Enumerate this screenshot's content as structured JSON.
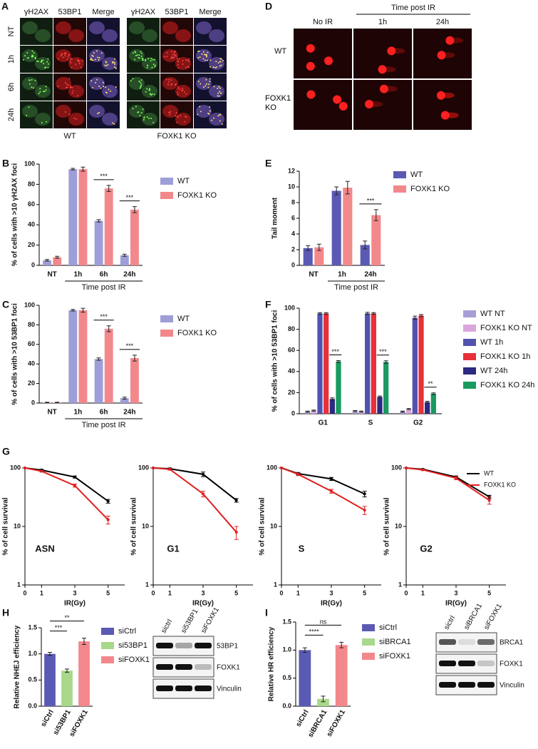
{
  "panel_a": {
    "label": "A",
    "rows": [
      "NT",
      "1h",
      "6h",
      "24h"
    ],
    "groups": [
      {
        "name": "WT",
        "columns": [
          "γH2AX",
          "53BP1",
          "Merge"
        ]
      },
      {
        "name": "FOXK1 KO",
        "columns": [
          "γH2AX",
          "53BP1",
          "Merge"
        ]
      }
    ]
  },
  "panel_d": {
    "label": "D",
    "header": "Time post IR",
    "columns": [
      "No IR",
      "1h",
      "24h"
    ],
    "rows": [
      "WT",
      "FOXK1 KO"
    ]
  },
  "blots": [
    {
      "columns": [
        "sictrl",
        "si53BP1",
        "siFOXK1"
      ],
      "rows": [
        "53BP1",
        "FOXK1",
        "Vinculin"
      ]
    },
    {
      "columns": [
        "sictrl",
        "siBRCA1",
        "siFOXK1"
      ],
      "rows": [
        "BRCA1",
        "FOXK1",
        "Vinculin"
      ]
    }
  ],
  "chart_data": [
    {
      "panel": "B",
      "type": "bar",
      "categories": [
        "NT",
        "1h",
        "6h",
        "24h"
      ],
      "series": [
        {
          "name": "WT",
          "color": "#9e9ed8",
          "values": [
            5,
            95,
            44,
            10
          ],
          "errors": [
            0.8,
            0.8,
            1.2,
            1
          ]
        },
        {
          "name": "FOXK1 KO",
          "color": "#f3888c",
          "values": [
            8,
            95,
            76,
            55
          ],
          "errors": [
            1,
            2,
            3,
            3
          ]
        }
      ],
      "ylim": [
        0,
        100
      ],
      "yticks": [
        0,
        20,
        40,
        60,
        80,
        100
      ],
      "ylabel": "% of cells with >10 γH2AX foci",
      "xlabel": "Time post IR",
      "annotations": [
        {
          "text": "***",
          "category": "6h"
        },
        {
          "text": "***",
          "category": "24h"
        }
      ]
    },
    {
      "panel": "E",
      "type": "bar",
      "categories": [
        "NT",
        "1h",
        "24h"
      ],
      "series": [
        {
          "name": "WT",
          "color": "#5a5ab4",
          "values": [
            2.2,
            9.5,
            2.6
          ],
          "errors": [
            0.3,
            0.5,
            0.5
          ]
        },
        {
          "name": "FOXK1 KO",
          "color": "#f3888c",
          "values": [
            2.3,
            9.9,
            6.4
          ],
          "errors": [
            0.4,
            0.8,
            0.7
          ]
        }
      ],
      "ylim": [
        0,
        12
      ],
      "yticks": [
        0,
        2,
        4,
        6,
        8,
        10,
        12
      ],
      "ylabel": "Tail moment",
      "xlabel": "Time post IR",
      "annotations": [
        {
          "text": "***",
          "category": "24h"
        }
      ]
    },
    {
      "panel": "C",
      "type": "bar",
      "categories": [
        "NT",
        "1h",
        "6h",
        "24h"
      ],
      "series": [
        {
          "name": "WT",
          "color": "#9e9ed8",
          "values": [
            0.5,
            95,
            45,
            5
          ],
          "errors": [
            0.3,
            0.8,
            1.2,
            1
          ]
        },
        {
          "name": "FOXK1 KO",
          "color": "#f3888c",
          "values": [
            0.5,
            95,
            76,
            46
          ],
          "errors": [
            0.3,
            2,
            3,
            3
          ]
        }
      ],
      "ylim": [
        0,
        100
      ],
      "yticks": [
        0,
        20,
        40,
        60,
        80,
        100
      ],
      "ylabel": "% of cells with >10 53BP1 foci",
      "xlabel": "Time post IR",
      "annotations": [
        {
          "text": "***",
          "category": "6h"
        },
        {
          "text": "***",
          "category": "24h"
        }
      ]
    },
    {
      "panel": "F",
      "type": "bar",
      "categories": [
        "G1",
        "S",
        "G2"
      ],
      "series": [
        {
          "name": "WT NT",
          "color": "#a89ed6",
          "values": [
            2,
            2.5,
            2
          ],
          "errors": [
            0.5,
            0.5,
            0.5
          ]
        },
        {
          "name": "FOXK1 KO NT",
          "color": "#d9a6dc",
          "values": [
            3,
            2,
            4.5
          ],
          "errors": [
            0.5,
            0.5,
            0.5
          ]
        },
        {
          "name": "WT 1h",
          "color": "#5252b0",
          "values": [
            95,
            95,
            91
          ],
          "errors": [
            0.8,
            1,
            1.5
          ]
        },
        {
          "name": "FOXK1 KO 1h",
          "color": "#e8303a",
          "values": [
            95,
            95,
            93
          ],
          "errors": [
            0.8,
            0.8,
            1
          ]
        },
        {
          "name": "WT 24h",
          "color": "#2a2a80",
          "values": [
            14,
            16,
            11
          ],
          "errors": [
            1,
            0.8,
            0.8
          ]
        },
        {
          "name": "FOXK1 KO 24h",
          "color": "#1a9a60",
          "values": [
            49.5,
            49,
            19
          ],
          "errors": [
            0.8,
            1.2,
            0.8
          ]
        }
      ],
      "ylim": [
        0,
        100
      ],
      "yticks": [
        0,
        20,
        40,
        60,
        80,
        100
      ],
      "ylabel": "% of cells with >10 53BP1 foci",
      "annotations": [
        {
          "text": "***",
          "category": "G1"
        },
        {
          "text": "***",
          "category": "S"
        },
        {
          "text": "**",
          "category": "G2"
        }
      ]
    },
    {
      "panel": "G",
      "type": "line",
      "label": "ASN",
      "x": [
        0,
        1,
        3,
        5
      ],
      "series": [
        {
          "color": "#000000",
          "values": [
            100,
            92,
            70,
            27
          ],
          "errors": [
            0,
            3,
            3,
            2
          ]
        },
        {
          "color": "#e02020",
          "values": [
            100,
            88,
            50,
            13
          ],
          "errors": [
            0,
            3,
            3,
            2
          ]
        }
      ],
      "xlim": [
        0,
        6
      ],
      "ylim": [
        1,
        100
      ],
      "xticks": [
        0,
        1,
        3,
        5
      ],
      "yticks": [
        1,
        10,
        100
      ],
      "yscale": "log",
      "xlabel": "IR(Gy)",
      "ylabel": "% of cell survival"
    },
    {
      "type": "line",
      "label": "G1",
      "x": [
        0,
        1,
        3,
        5
      ],
      "series": [
        {
          "color": "#000000",
          "values": [
            100,
            97,
            78,
            28
          ],
          "errors": [
            0,
            3,
            7,
            2
          ]
        },
        {
          "color": "#e02020",
          "values": [
            100,
            95,
            36,
            8
          ],
          "errors": [
            0,
            3,
            4,
            2
          ]
        }
      ],
      "xlim": [
        0,
        6
      ],
      "ylim": [
        1,
        100
      ],
      "xticks": [
        0,
        1,
        3,
        5
      ],
      "yticks": [
        1,
        10,
        100
      ],
      "yscale": "log",
      "xlabel": "IR(Gy)",
      "ylabel": "% of cell survival"
    },
    {
      "type": "line",
      "label": "S",
      "x": [
        0,
        1,
        3,
        5
      ],
      "series": [
        {
          "color": "#000000",
          "values": [
            100,
            80,
            65,
            36
          ],
          "errors": [
            0,
            4,
            4,
            4
          ]
        },
        {
          "color": "#e02020",
          "values": [
            100,
            78,
            40,
            19
          ],
          "errors": [
            0,
            4,
            3,
            3
          ]
        }
      ],
      "xlim": [
        0,
        6
      ],
      "ylim": [
        1,
        100
      ],
      "xticks": [
        0,
        1,
        3,
        5
      ],
      "yticks": [
        1,
        10,
        100
      ],
      "yscale": "log",
      "xlabel": "IR(Gy)",
      "ylabel": "% of cell survival"
    },
    {
      "type": "line",
      "label": "G2",
      "x": [
        0,
        1,
        3,
        5
      ],
      "series": [
        {
          "name": "WT",
          "color": "#000000",
          "values": [
            100,
            95,
            70,
            32
          ],
          "errors": [
            0,
            2,
            3,
            2
          ]
        },
        {
          "name": "FOXK1 KO",
          "color": "#e02020",
          "values": [
            100,
            93,
            67,
            28
          ],
          "errors": [
            0,
            2,
            4,
            4
          ]
        }
      ],
      "xlim": [
        0,
        6
      ],
      "ylim": [
        1,
        100
      ],
      "xticks": [
        0,
        1,
        3,
        5
      ],
      "yticks": [
        1,
        10,
        100
      ],
      "yscale": "log",
      "xlabel": "IR(Gy)",
      "ylabel": "% of cell survival"
    },
    {
      "panel": "H",
      "type": "bar",
      "categories": [
        "siCtrl",
        "si53BP1",
        "siFOXK1"
      ],
      "colors": [
        "#5a5ab4",
        "#a8d88a",
        "#f3888c"
      ],
      "series": [
        {
          "values": [
            1.0,
            0.68,
            1.24
          ],
          "errors": [
            0.03,
            0.03,
            0.06
          ]
        }
      ],
      "ylim": [
        0,
        1.5
      ],
      "yticks": [
        {
          "value": 0,
          "label": "0.0"
        },
        {
          "value": 0.5,
          "label": "0.5"
        },
        {
          "value": 1,
          "label": "1.0"
        },
        {
          "value": 1.5,
          "label": "1.5"
        }
      ],
      "ylabel": "Relative NHEJ efficiency",
      "annotations": [
        {
          "text": "***",
          "from": "siCtrl",
          "to": "si53BP1"
        },
        {
          "text": "**",
          "from": "siCtrl",
          "to": "siFOXK1"
        }
      ]
    },
    {
      "panel": "I",
      "type": "bar",
      "categories": [
        "siCtrl",
        "siBRCA1",
        "siFOXK1"
      ],
      "colors": [
        "#5a5ab4",
        "#a8d88a",
        "#f3888c"
      ],
      "series": [
        {
          "values": [
            1.0,
            0.13,
            1.09
          ],
          "errors": [
            0.04,
            0.05,
            0.05
          ]
        }
      ],
      "ylim": [
        0,
        1.5
      ],
      "yticks": [
        {
          "value": 0,
          "label": "0.0"
        },
        {
          "value": 0.5,
          "label": "0.5"
        },
        {
          "value": 1,
          "label": "1.0"
        },
        {
          "value": 1.5,
          "label": "1.5"
        }
      ],
      "ylabel": "Relative HR efficiency",
      "annotations": [
        {
          "text": "****",
          "from": "siCtrl",
          "to": "siBRCA1"
        },
        {
          "text": "ns",
          "from": "siCtrl",
          "to": "siFOXK1"
        }
      ]
    }
  ]
}
